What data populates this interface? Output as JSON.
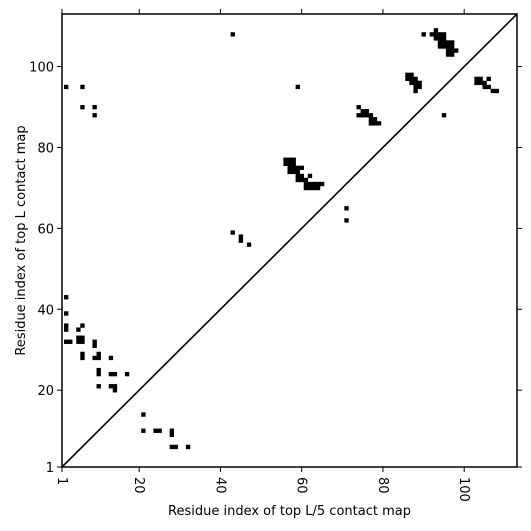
{
  "chart_data": {
    "type": "heatmap",
    "title": "",
    "xlabel": "Residue index of top L/5 contact map",
    "ylabel": "Residue index of top L contact map",
    "xlim": [
      1,
      113
    ],
    "ylim": [
      1,
      113
    ],
    "xticks": [
      1,
      20,
      40,
      60,
      80,
      100
    ],
    "yticks": [
      1,
      20,
      40,
      60,
      80,
      100
    ],
    "grid": false,
    "diagonal": true,
    "mark_color": "#000000",
    "points_upper": [
      [
        2,
        95
      ],
      [
        6,
        95
      ],
      [
        6,
        90
      ],
      [
        9,
        90
      ],
      [
        9,
        88
      ],
      [
        43,
        108
      ],
      [
        59,
        95
      ],
      [
        56,
        77
      ],
      [
        57,
        77
      ],
      [
        58,
        77
      ],
      [
        56,
        76
      ],
      [
        57,
        76
      ],
      [
        58,
        76
      ],
      [
        57,
        75
      ],
      [
        58,
        75
      ],
      [
        59,
        75
      ],
      [
        60,
        75
      ],
      [
        57,
        74
      ],
      [
        58,
        74
      ],
      [
        59,
        74
      ],
      [
        59,
        73
      ],
      [
        60,
        73
      ],
      [
        59,
        72
      ],
      [
        60,
        72
      ],
      [
        61,
        72
      ],
      [
        62,
        73
      ],
      [
        61,
        71
      ],
      [
        62,
        71
      ],
      [
        63,
        71
      ],
      [
        64,
        71
      ],
      [
        65,
        71
      ],
      [
        61,
        70
      ],
      [
        62,
        70
      ],
      [
        63,
        70
      ],
      [
        64,
        70
      ],
      [
        74,
        90
      ],
      [
        74,
        88
      ],
      [
        75,
        88
      ],
      [
        75,
        89
      ],
      [
        76,
        89
      ],
      [
        76,
        88
      ],
      [
        77,
        88
      ],
      [
        77,
        87
      ],
      [
        78,
        87
      ],
      [
        77,
        86
      ],
      [
        78,
        86
      ],
      [
        79,
        86
      ],
      [
        86,
        98
      ],
      [
        87,
        98
      ],
      [
        86,
        97
      ],
      [
        87,
        97
      ],
      [
        88,
        97
      ],
      [
        87,
        96
      ],
      [
        88,
        96
      ],
      [
        89,
        96
      ],
      [
        88,
        95
      ],
      [
        89,
        95
      ],
      [
        88,
        94
      ],
      [
        90,
        108
      ],
      [
        92,
        108
      ],
      [
        93,
        109
      ],
      [
        93,
        108
      ],
      [
        94,
        108
      ],
      [
        95,
        108
      ],
      [
        93,
        107
      ],
      [
        94,
        107
      ],
      [
        95,
        107
      ],
      [
        94,
        106
      ],
      [
        95,
        106
      ],
      [
        96,
        106
      ],
      [
        97,
        106
      ],
      [
        94,
        105
      ],
      [
        95,
        105
      ],
      [
        96,
        105
      ],
      [
        97,
        105
      ],
      [
        96,
        104
      ],
      [
        97,
        104
      ],
      [
        98,
        104
      ],
      [
        96,
        103
      ],
      [
        97,
        103
      ],
      [
        103,
        97
      ],
      [
        104,
        97
      ],
      [
        106,
        97
      ],
      [
        103,
        96
      ],
      [
        104,
        96
      ],
      [
        105,
        96
      ],
      [
        105,
        95
      ],
      [
        106,
        95
      ],
      [
        107,
        94
      ],
      [
        108,
        94
      ],
      [
        95,
        88
      ],
      [
        43,
        59
      ],
      [
        45,
        58
      ],
      [
        45,
        57
      ],
      [
        47,
        56
      ],
      [
        71,
        65
      ],
      [
        71,
        62
      ]
    ],
    "points_lower": [
      [
        2,
        43
      ],
      [
        2,
        39
      ],
      [
        2,
        36
      ],
      [
        2,
        35
      ],
      [
        2,
        32
      ],
      [
        3,
        32
      ],
      [
        6,
        36
      ],
      [
        5,
        35
      ],
      [
        5,
        33
      ],
      [
        6,
        33
      ],
      [
        5,
        32
      ],
      [
        6,
        32
      ],
      [
        6,
        29
      ],
      [
        6,
        28
      ],
      [
        9,
        32
      ],
      [
        9,
        31
      ],
      [
        9,
        28
      ],
      [
        10,
        29
      ],
      [
        10,
        28
      ],
      [
        10,
        25
      ],
      [
        10,
        24
      ],
      [
        10,
        21
      ],
      [
        13,
        28
      ],
      [
        13,
        24
      ],
      [
        14,
        24
      ],
      [
        13,
        21
      ],
      [
        14,
        21
      ],
      [
        14,
        20
      ],
      [
        17,
        24
      ],
      [
        21,
        14
      ],
      [
        21,
        10
      ],
      [
        24,
        10
      ],
      [
        25,
        10
      ],
      [
        28,
        9
      ],
      [
        28,
        10
      ],
      [
        28,
        6
      ],
      [
        29,
        6
      ],
      [
        32,
        6
      ]
    ]
  }
}
